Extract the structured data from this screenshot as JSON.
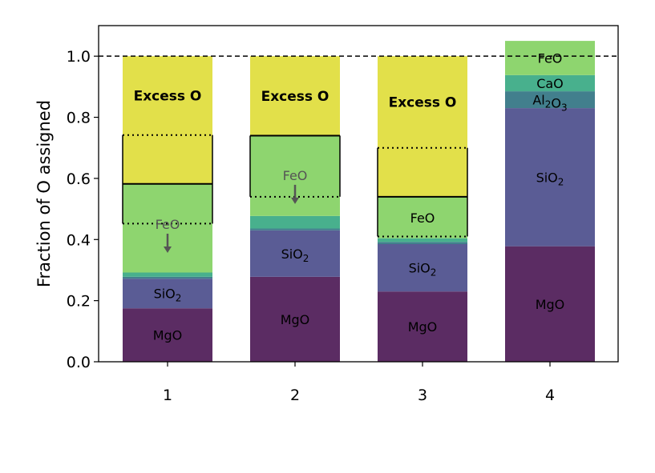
{
  "chart_data": {
    "type": "bar",
    "stacked": true,
    "categories": [
      "1",
      "2",
      "3",
      "4"
    ],
    "ylabel": "Fraction of O assigned",
    "xlabel": "",
    "title": "",
    "ylim": [
      0.0,
      1.1
    ],
    "yticks": [
      "0.0",
      "0.2",
      "0.4",
      "0.6",
      "0.8",
      "1.0"
    ],
    "reference_line": {
      "y": 1.0,
      "style": "dashed"
    },
    "grid": false,
    "colors": {
      "MgO": "#5b2c63",
      "SiO2": "#5a5c95",
      "Al2O3": "#427f8d",
      "CaO": "#48b08d",
      "FeO": "#8ed56f",
      "Excess O": "#e2e04a"
    },
    "bars": [
      {
        "category": "1",
        "segments": [
          {
            "component": "MgO",
            "label": "MgO",
            "start": 0.0,
            "end": 0.175
          },
          {
            "component": "SiO2",
            "label": "SiO₂",
            "start": 0.175,
            "end": 0.272
          },
          {
            "component": "Al2O3",
            "label": "",
            "start": 0.272,
            "end": 0.278
          },
          {
            "component": "CaO",
            "label": "",
            "start": 0.278,
            "end": 0.292
          },
          {
            "component": "FeO",
            "label": "FeO",
            "start": 0.292,
            "end": 0.582
          },
          {
            "component": "Excess O",
            "label": "Excess O",
            "start": 0.582,
            "end": 1.0
          }
        ],
        "feo_range": {
          "low": 0.452,
          "high": 0.742
        },
        "feo_label_dimmed": true
      },
      {
        "category": "2",
        "segments": [
          {
            "component": "MgO",
            "label": "MgO",
            "start": 0.0,
            "end": 0.278
          },
          {
            "component": "SiO2",
            "label": "SiO₂",
            "start": 0.278,
            "end": 0.43
          },
          {
            "component": "Al2O3",
            "label": "",
            "start": 0.43,
            "end": 0.436
          },
          {
            "component": "CaO",
            "label": "",
            "start": 0.436,
            "end": 0.477
          },
          {
            "component": "FeO",
            "label": "FeO",
            "start": 0.477,
            "end": 0.74
          },
          {
            "component": "Excess O",
            "label": "Excess O",
            "start": 0.74,
            "end": 1.0
          }
        ],
        "feo_range": {
          "low": 0.54,
          "high": 0.74
        },
        "feo_label_dimmed": true
      },
      {
        "category": "3",
        "segments": [
          {
            "component": "MgO",
            "label": "MgO",
            "start": 0.0,
            "end": 0.23
          },
          {
            "component": "SiO2",
            "label": "SiO₂",
            "start": 0.23,
            "end": 0.385
          },
          {
            "component": "Al2O3",
            "label": "",
            "start": 0.385,
            "end": 0.392
          },
          {
            "component": "CaO",
            "label": "",
            "start": 0.392,
            "end": 0.404
          },
          {
            "component": "FeO",
            "label": "FeO",
            "start": 0.404,
            "end": 0.54
          },
          {
            "component": "Excess O",
            "label": "Excess O",
            "start": 0.54,
            "end": 1.0
          }
        ],
        "feo_range": {
          "low": 0.41,
          "high": 0.7
        },
        "feo_label_dimmed": false
      },
      {
        "category": "4",
        "segments": [
          {
            "component": "MgO",
            "label": "MgO",
            "start": 0.0,
            "end": 0.378
          },
          {
            "component": "SiO2",
            "label": "SiO₂",
            "start": 0.378,
            "end": 0.83
          },
          {
            "component": "Al2O3",
            "label": "Al₂O₃",
            "start": 0.83,
            "end": 0.885
          },
          {
            "component": "CaO",
            "label": "CaO",
            "start": 0.885,
            "end": 0.938
          },
          {
            "component": "FeO",
            "label": "FeO",
            "start": 0.938,
            "end": 1.05
          }
        ]
      }
    ]
  }
}
